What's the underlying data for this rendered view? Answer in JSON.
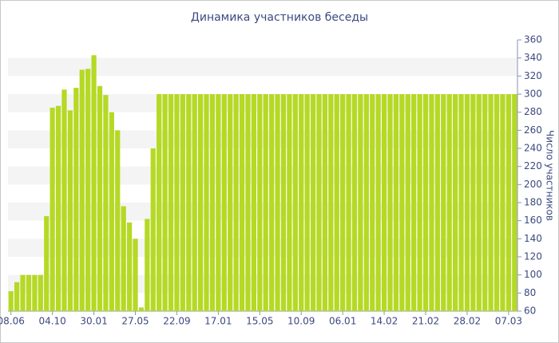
{
  "chart_data": {
    "type": "bar",
    "title": "Динамика участников беседы",
    "y_axis_label": "Число участников",
    "categories": [
      "08.06",
      null,
      null,
      null,
      null,
      null,
      null,
      "04.10",
      null,
      null,
      null,
      null,
      null,
      null,
      "30.01",
      null,
      null,
      null,
      null,
      null,
      null,
      "27.05",
      null,
      null,
      null,
      null,
      null,
      null,
      "22.09",
      null,
      null,
      null,
      null,
      null,
      null,
      "17.01",
      null,
      null,
      null,
      null,
      null,
      null,
      "15.05",
      null,
      null,
      null,
      null,
      null,
      null,
      "10.09",
      null,
      null,
      null,
      null,
      null,
      null,
      "06.01",
      null,
      null,
      null,
      null,
      null,
      null,
      "14.02",
      null,
      null,
      null,
      null,
      null,
      null,
      "21.02",
      null,
      null,
      null,
      null,
      null,
      null,
      "28.02",
      null,
      null,
      null,
      null,
      null,
      null,
      "07.03",
      null
    ],
    "values": [
      82,
      92,
      100,
      100,
      100,
      100,
      165,
      285,
      287,
      305,
      282,
      307,
      327,
      328,
      343,
      309,
      299,
      280,
      260,
      176,
      158,
      140,
      64,
      162,
      240,
      300,
      300,
      300,
      300,
      300,
      300,
      300,
      300,
      300,
      300,
      300,
      300,
      300,
      300,
      300,
      300,
      300,
      300,
      300,
      300,
      300,
      300,
      300,
      300,
      300,
      300,
      300,
      300,
      300,
      300,
      300,
      300,
      300,
      300,
      300,
      300,
      300,
      300,
      300,
      300,
      300,
      300,
      300,
      300,
      300,
      300,
      300,
      300,
      300,
      300,
      300,
      300,
      300,
      300,
      300,
      300,
      300,
      300,
      300,
      300,
      300
    ],
    "color": "#b5d924",
    "ylim": [
      60,
      360
    ],
    "yticks": [
      60,
      80,
      100,
      120,
      140,
      160,
      180,
      200,
      220,
      240,
      260,
      280,
      300,
      320,
      340,
      360
    ],
    "grid": "bands",
    "y_axis_side": "right"
  }
}
